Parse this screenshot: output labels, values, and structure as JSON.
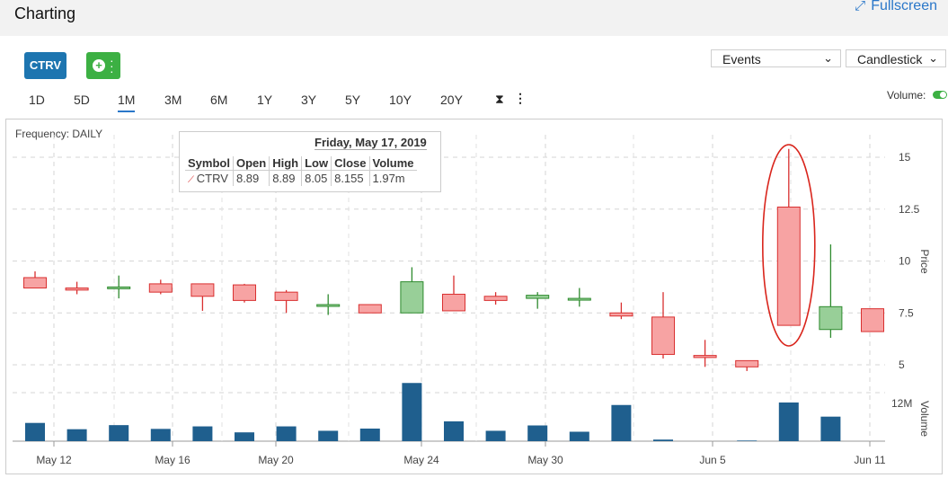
{
  "header": {
    "title": "Charting",
    "fullscreen_label": "Fullscreen"
  },
  "toolbar": {
    "symbol_button": "CTRV",
    "events_select": "Events",
    "chart_type_select": "Candlestick",
    "ranges": [
      "1D",
      "5D",
      "1M",
      "3M",
      "6M",
      "1Y",
      "3Y",
      "5Y",
      "10Y",
      "20Y"
    ],
    "active_range": "1M",
    "volume_label": "Volume:",
    "volume_on": true
  },
  "chart_meta": {
    "frequency": "Frequency: DAILY"
  },
  "tooltip": {
    "date": "Friday, May 17, 2019",
    "headers": [
      "Symbol",
      "Open",
      "High",
      "Low",
      "Close",
      "Volume"
    ],
    "row": [
      "CTRV",
      "8.89",
      "8.89",
      "8.05",
      "8.155",
      "1.97m"
    ]
  },
  "colors": {
    "up_fill": "#98cf98",
    "up_stroke": "#2e8b2e",
    "down_fill": "#f7a3a3",
    "down_stroke": "#d93030",
    "volume": "#1f5f8e",
    "accent": "#2a77c9",
    "annotation": "#d9251c"
  },
  "chart_data": {
    "type": "candlestick",
    "price_axis": {
      "label": "Price",
      "ticks": [
        "15",
        "12.5",
        "10",
        "7.5",
        "5"
      ],
      "range": [
        4.4,
        16
      ]
    },
    "volume_axis": {
      "label": "Volume",
      "ticks": [
        "12M"
      ],
      "range": [
        0,
        20
      ]
    },
    "x_ticks": [
      "May 12",
      "May 16",
      "May 20",
      "May 24",
      "May 30",
      "Jun 5",
      "Jun 11"
    ],
    "grid": true,
    "candles": [
      {
        "open": 9.2,
        "high": 9.5,
        "low": 8.7,
        "close": 8.7,
        "volume": 5.8
      },
      {
        "open": 8.7,
        "high": 9.0,
        "low": 8.4,
        "close": 8.6,
        "volume": 3.8
      },
      {
        "open": 8.75,
        "high": 9.3,
        "low": 8.2,
        "close": 8.75,
        "volume": 5.1
      },
      {
        "open": 8.9,
        "high": 9.1,
        "low": 8.4,
        "close": 8.5,
        "volume": 3.9
      },
      {
        "open": 8.9,
        "high": 8.9,
        "low": 7.6,
        "close": 8.3,
        "volume": 4.7
      },
      {
        "open": 8.85,
        "high": 8.9,
        "low": 8.0,
        "close": 8.1,
        "volume": 2.8
      },
      {
        "open": 8.5,
        "high": 8.6,
        "low": 7.5,
        "close": 8.1,
        "volume": 4.7
      },
      {
        "open": 7.9,
        "high": 8.4,
        "low": 7.4,
        "close": 7.9,
        "volume": 3.3
      },
      {
        "open": 7.9,
        "high": 7.9,
        "low": 7.5,
        "close": 7.5,
        "volume": 4.0
      },
      {
        "open": 7.5,
        "high": 9.7,
        "low": 7.5,
        "close": 9.0,
        "volume": 18.5
      },
      {
        "open": 8.4,
        "high": 9.3,
        "low": 7.6,
        "close": 7.6,
        "volume": 6.3
      },
      {
        "open": 8.3,
        "high": 8.5,
        "low": 7.9,
        "close": 8.1,
        "volume": 3.3
      },
      {
        "open": 8.2,
        "high": 8.5,
        "low": 7.7,
        "close": 8.35,
        "volume": 5.0
      },
      {
        "open": 8.2,
        "high": 8.7,
        "low": 7.8,
        "close": 8.2,
        "volume": 3.0
      },
      {
        "open": 7.5,
        "high": 8.0,
        "low": 7.2,
        "close": 7.35,
        "volume": 11.5
      },
      {
        "open": 7.3,
        "high": 8.5,
        "low": 5.3,
        "close": 5.5,
        "volume": 0.5
      },
      {
        "open": 5.45,
        "high": 6.2,
        "low": 4.9,
        "close": 5.35,
        "volume": 0
      },
      {
        "open": 5.2,
        "high": 5.2,
        "low": 4.7,
        "close": 4.9,
        "volume": 0.2
      },
      {
        "open": 12.6,
        "high": 15.4,
        "low": 6.9,
        "close": 6.9,
        "volume": 12.3
      },
      {
        "open": 6.7,
        "high": 10.8,
        "low": 6.3,
        "close": 7.8,
        "volume": 7.8
      },
      {
        "open": 7.7,
        "high": 7.7,
        "low": 6.6,
        "close": 6.6,
        "volume": 0
      }
    ]
  }
}
